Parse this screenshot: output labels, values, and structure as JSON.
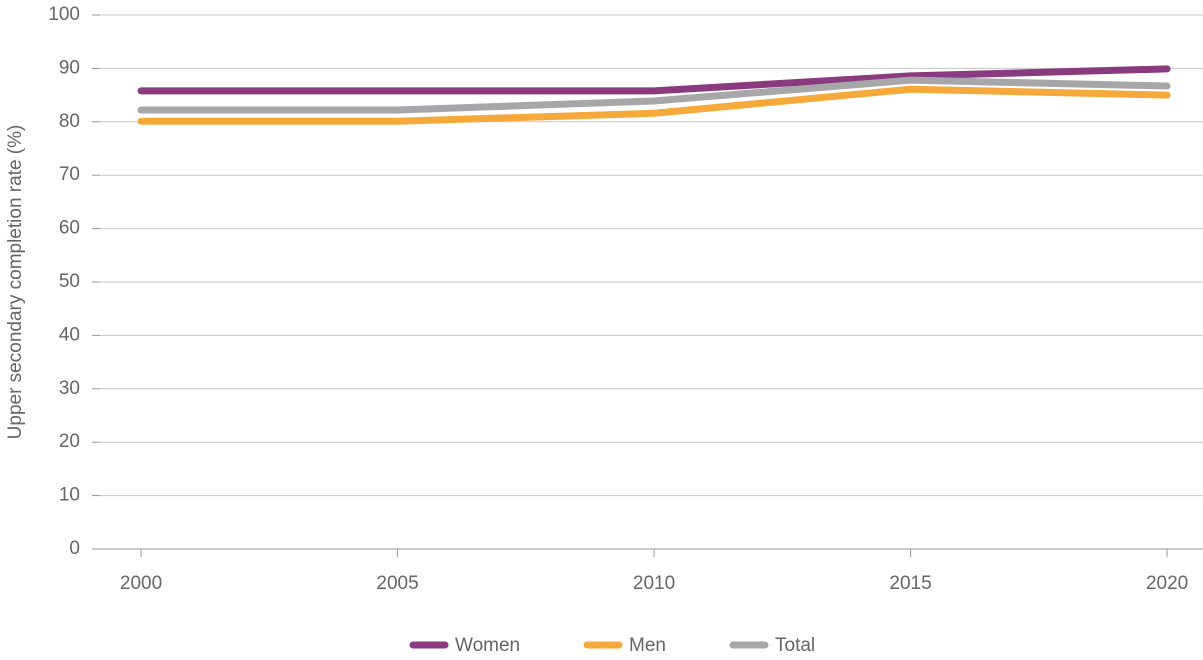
{
  "chart_data": {
    "type": "line",
    "y_label": "Upper secondary completion rate (%)",
    "x": [
      2000,
      2005,
      2010,
      2015,
      2020
    ],
    "xlim": [
      1999.2,
      2020.7
    ],
    "xticks": [
      2000,
      2005,
      2010,
      2015,
      2020
    ],
    "ylim": [
      0,
      100
    ],
    "yticks": [
      0,
      10,
      20,
      30,
      40,
      50,
      60,
      70,
      80,
      90,
      100
    ],
    "grid": true,
    "legend": "bottom",
    "series": [
      {
        "name": "Women",
        "color": "#8a3a7e",
        "values": [
          85.8,
          85.8,
          85.8,
          88.6,
          89.9
        ]
      },
      {
        "name": "Men",
        "color": "#f5a93a",
        "values": [
          80.1,
          80.1,
          81.6,
          86.1,
          85.0
        ]
      },
      {
        "name": "Total",
        "color": "#a7a7a9",
        "values": [
          82.2,
          82.2,
          83.9,
          87.8,
          86.7
        ]
      }
    ]
  }
}
